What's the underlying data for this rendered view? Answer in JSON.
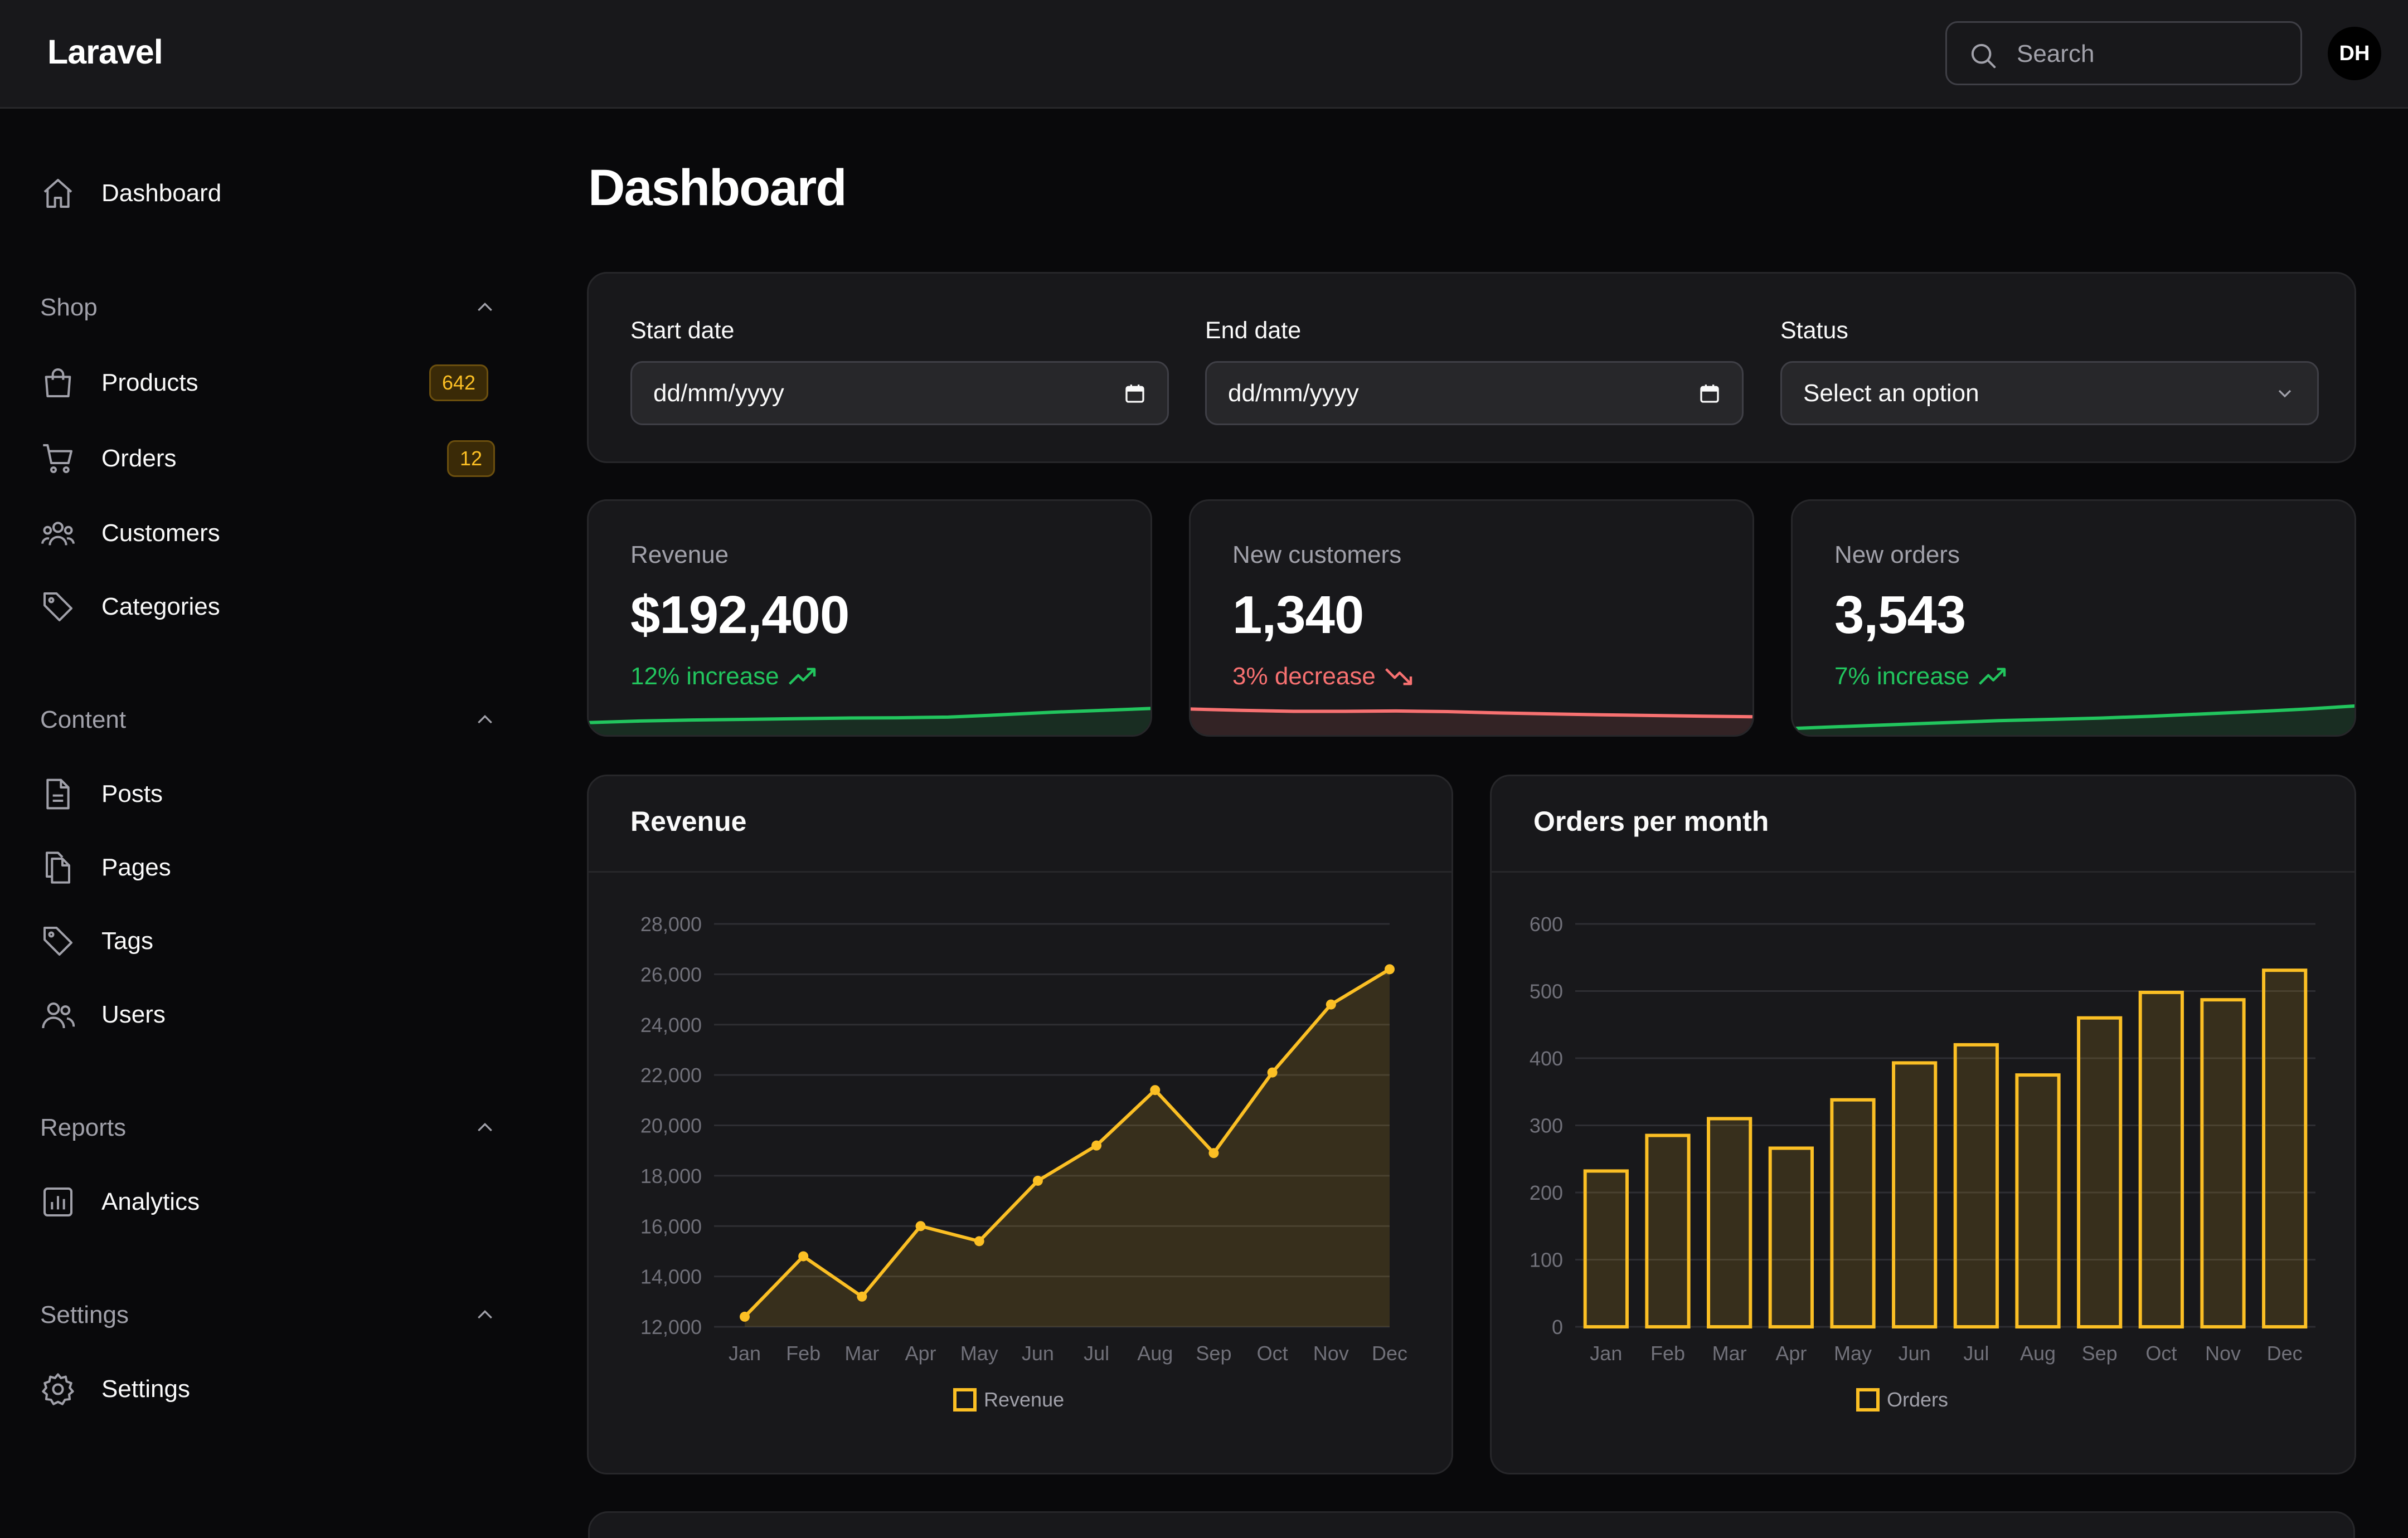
{
  "header": {
    "brand": "Laravel",
    "search_placeholder": "Search",
    "avatar_initials": "DH"
  },
  "sidebar": {
    "dashboard": "Dashboard",
    "groups": [
      {
        "label": "Shop",
        "items": [
          {
            "label": "Products",
            "badge": "642",
            "icon": "shopping-bag-icon"
          },
          {
            "label": "Orders",
            "badge": "12",
            "icon": "shopping-cart-icon"
          },
          {
            "label": "Customers",
            "icon": "users-group-icon"
          },
          {
            "label": "Categories",
            "icon": "tag-icon"
          }
        ]
      },
      {
        "label": "Content",
        "items": [
          {
            "label": "Posts",
            "icon": "document-icon"
          },
          {
            "label": "Pages",
            "icon": "documents-icon"
          },
          {
            "label": "Tags",
            "icon": "tag-icon"
          },
          {
            "label": "Users",
            "icon": "users-icon"
          }
        ]
      },
      {
        "label": "Reports",
        "items": [
          {
            "label": "Analytics",
            "icon": "chart-bar-icon"
          }
        ]
      },
      {
        "label": "Settings",
        "items": [
          {
            "label": "Settings",
            "icon": "gear-icon"
          }
        ]
      }
    ]
  },
  "main": {
    "title": "Dashboard",
    "filters": {
      "start_label": "Start date",
      "start_value": "dd/mm/yyyy",
      "end_label": "End date",
      "end_value": "dd/mm/yyyy",
      "status_label": "Status",
      "status_value": "Select an option"
    },
    "stats": [
      {
        "label": "Revenue",
        "value": "$192,400",
        "change": "12% increase",
        "trend": "up"
      },
      {
        "label": "New customers",
        "value": "1,340",
        "change": "3% decrease",
        "trend": "down"
      },
      {
        "label": "New orders",
        "value": "3,543",
        "change": "7% increase",
        "trend": "up"
      }
    ],
    "charts_titles": {
      "revenue": "Revenue",
      "orders": "Orders per month"
    }
  },
  "colors": {
    "accent": "#fbbf24",
    "up": "#22c55e",
    "down": "#f87171",
    "card": "#18181b",
    "border": "#27272a"
  },
  "chart_data": [
    {
      "type": "area",
      "title": "Revenue",
      "categories": [
        "Jan",
        "Feb",
        "Mar",
        "Apr",
        "May",
        "Jun",
        "Jul",
        "Aug",
        "Sep",
        "Oct",
        "Nov",
        "Dec"
      ],
      "series": [
        {
          "name": "Revenue",
          "values": [
            12400,
            14800,
            13200,
            16000,
            15400,
            17800,
            19200,
            21400,
            18900,
            22100,
            24800,
            26200
          ]
        }
      ],
      "ylim": [
        12000,
        28000
      ],
      "yticks": [
        "12,000",
        "14,000",
        "16,000",
        "18,000",
        "20,000",
        "22,000",
        "24,000",
        "26,000",
        "28,000"
      ],
      "grid": true,
      "legend": "bottom"
    },
    {
      "type": "bar",
      "title": "Orders per month",
      "categories": [
        "Jan",
        "Feb",
        "Mar",
        "Apr",
        "May",
        "Jun",
        "Jul",
        "Aug",
        "Sep",
        "Oct",
        "Nov",
        "Dec"
      ],
      "series": [
        {
          "name": "Orders",
          "values": [
            232,
            285,
            310,
            266,
            338,
            393,
            420,
            375,
            460,
            498,
            487,
            531
          ]
        }
      ],
      "ylim": [
        0,
        600
      ],
      "yticks": [
        "0",
        "100",
        "200",
        "300",
        "400",
        "500",
        "600"
      ],
      "grid": true,
      "legend": "bottom"
    }
  ],
  "sparklines": {
    "revenue": [
      0.28,
      0.33,
      0.36,
      0.38,
      0.4,
      0.42,
      0.43,
      0.45,
      0.52,
      0.6,
      0.66,
      0.72
    ],
    "new_customers": [
      0.7,
      0.66,
      0.63,
      0.63,
      0.64,
      0.62,
      0.58,
      0.55,
      0.52,
      0.5,
      0.48,
      0.46
    ],
    "new_orders": [
      0.1,
      0.16,
      0.22,
      0.28,
      0.34,
      0.38,
      0.42,
      0.48,
      0.55,
      0.62,
      0.7,
      0.8
    ]
  }
}
